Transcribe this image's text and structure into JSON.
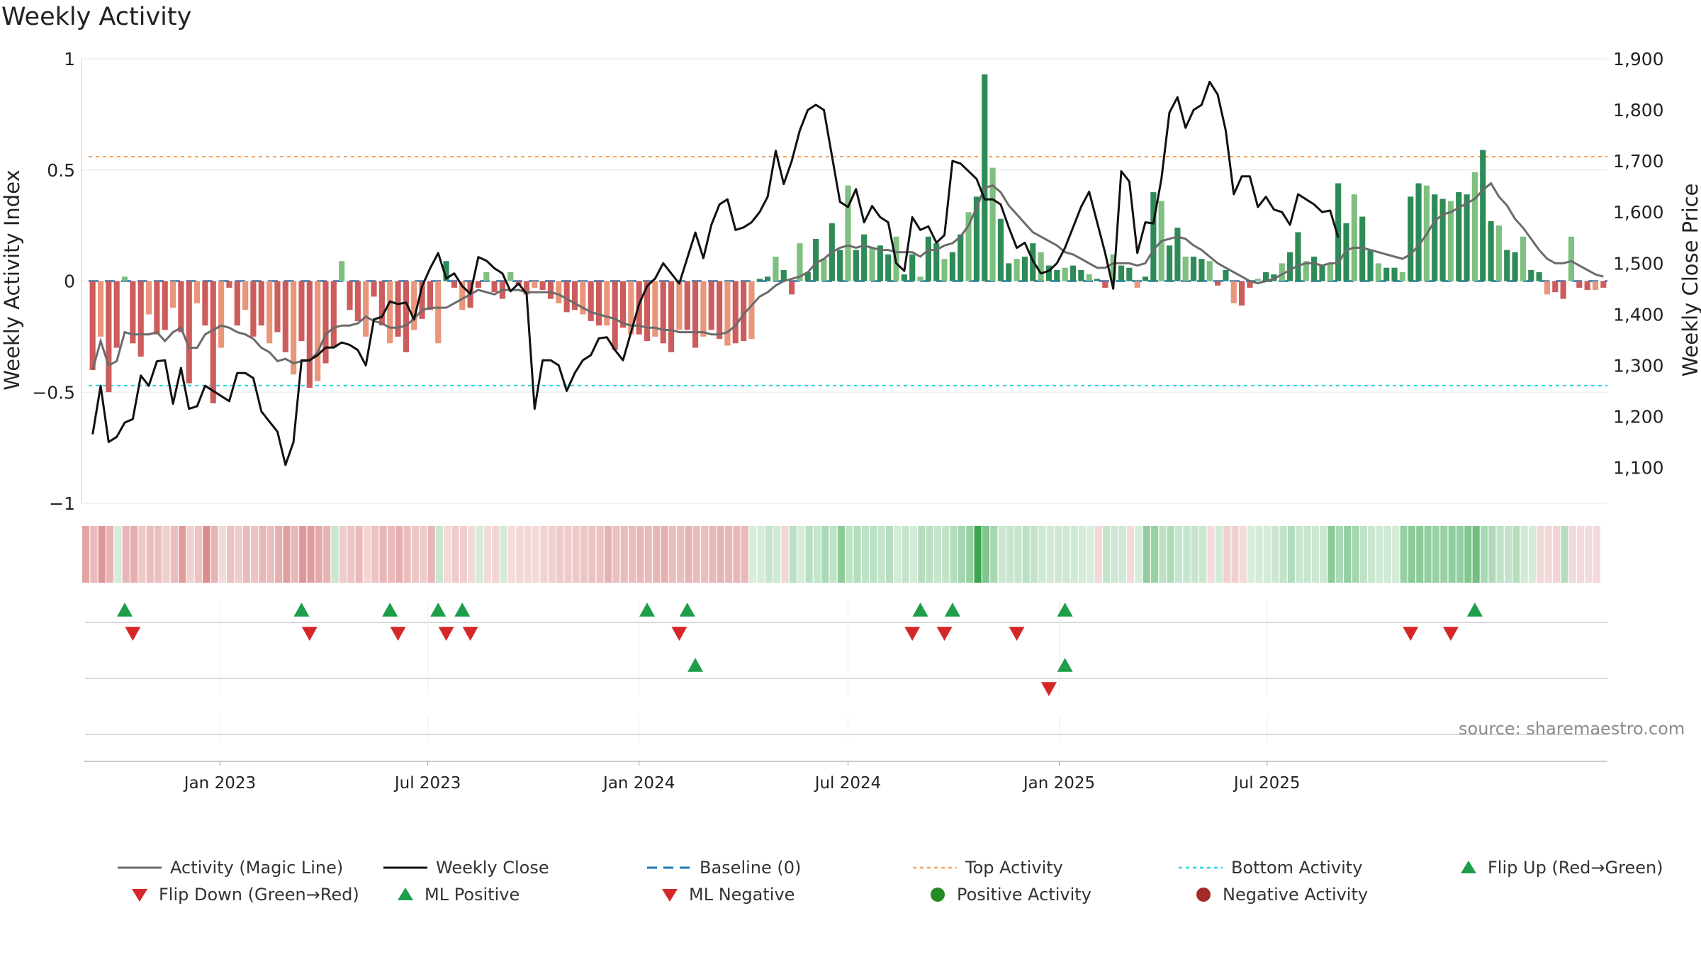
{
  "title": "Weekly Activity",
  "source": "source: sharemaestro.com",
  "colors": {
    "pos_dark": "#2e8b57",
    "pos_light": "#7fbf7f",
    "neg_dark": "#cd5c5c",
    "neg_light": "#e9967a",
    "magic": "#6b6b6b",
    "close": "#111111",
    "baseline": "#1f77b4",
    "top": "#f4a460",
    "bottom": "#1fd3e0",
    "flip_up": "#1e9e4a",
    "flip_down": "#d62728"
  },
  "chart_data": {
    "type": "bar",
    "title": "Weekly Activity",
    "ylabel": "Weekly Activity Index",
    "y2label": "Weekly Close Price",
    "ylim": [
      -1,
      1
    ],
    "y2lim": [
      1030,
      1900
    ],
    "yticks": [
      "1",
      "0.5",
      "0",
      "−0.5",
      "−1"
    ],
    "yticks_values": [
      1,
      0.5,
      0,
      -0.5,
      -1
    ],
    "y2ticks": [
      "1,900",
      "1,800",
      "1,700",
      "1,600",
      "1,500",
      "1,400",
      "1,300",
      "1,200",
      "1,100"
    ],
    "y2ticks_values": [
      1900,
      1800,
      1700,
      1600,
      1500,
      1400,
      1300,
      1200,
      1100
    ],
    "x_start": "2022-09-12",
    "x_step_days": 7,
    "xticks": [
      {
        "label": "Jan 2023",
        "date": "2023-01-01"
      },
      {
        "label": "Jul 2023",
        "date": "2023-07-01"
      },
      {
        "label": "Jan 2024",
        "date": "2024-01-01"
      },
      {
        "label": "Jul 2024",
        "date": "2024-07-01"
      },
      {
        "label": "Jan 2025",
        "date": "2025-01-01"
      },
      {
        "label": "Jul 2025",
        "date": "2025-07-01"
      }
    ],
    "top_activity": 0.56,
    "bottom_activity": -0.47,
    "baseline": 0,
    "series": [
      {
        "name": "Weekly Activity",
        "values": [
          -0.4,
          -0.25,
          -0.5,
          -0.3,
          0.02,
          -0.28,
          -0.34,
          -0.15,
          -0.24,
          -0.22,
          -0.12,
          -0.23,
          -0.46,
          -0.1,
          -0.2,
          -0.55,
          -0.3,
          -0.03,
          -0.2,
          -0.13,
          -0.25,
          -0.2,
          -0.28,
          -0.23,
          -0.32,
          -0.42,
          -0.27,
          -0.48,
          -0.45,
          -0.37,
          -0.3,
          0.09,
          -0.13,
          -0.18,
          -0.25,
          -0.07,
          -0.2,
          -0.28,
          -0.25,
          -0.32,
          -0.22,
          -0.17,
          -0.13,
          -0.28,
          0.09,
          -0.03,
          -0.13,
          -0.12,
          -0.03,
          0.04,
          -0.05,
          -0.08,
          0.04,
          -0.02,
          -0.06,
          -0.03,
          -0.04,
          -0.08,
          -0.1,
          -0.14,
          -0.13,
          -0.15,
          -0.18,
          -0.2,
          -0.2,
          -0.31,
          -0.21,
          -0.24,
          -0.24,
          -0.27,
          -0.25,
          -0.28,
          -0.32,
          -0.22,
          -0.22,
          -0.3,
          -0.25,
          -0.22,
          -0.26,
          -0.29,
          -0.28,
          -0.27,
          -0.26,
          0.01,
          0.02,
          0.11,
          0.05,
          -0.06,
          0.17,
          0.04,
          0.19,
          0.1,
          0.26,
          0.14,
          0.43,
          0.14,
          0.21,
          0.15,
          0.16,
          0.12,
          0.2,
          0.03,
          0.12,
          0.02,
          0.2,
          0.17,
          0.1,
          0.13,
          0.21,
          0.31,
          0.38,
          0.93,
          0.51,
          0.28,
          0.08,
          0.1,
          0.11,
          0.17,
          0.13,
          0.07,
          0.05,
          0.06,
          0.07,
          0.05,
          0.03,
          0.01,
          -0.03,
          0.12,
          0.07,
          0.06,
          -0.03,
          0.02,
          0.4,
          0.36,
          0.16,
          0.24,
          0.11,
          0.11,
          0.1,
          0.09,
          -0.02,
          0.05,
          -0.1,
          -0.11,
          -0.03,
          0.01,
          0.04,
          0.03,
          0.08,
          0.13,
          0.22,
          0.09,
          0.11,
          0.07,
          0.08,
          0.44,
          0.26,
          0.39,
          0.29,
          0.14,
          0.08,
          0.06,
          0.06,
          0.04,
          0.38,
          0.44,
          0.43,
          0.39,
          0.37,
          0.36,
          0.4,
          0.39,
          0.49,
          0.59,
          0.27,
          0.25,
          0.14,
          0.13,
          0.2,
          0.05,
          0.04,
          -0.06,
          -0.05,
          -0.08,
          0.2,
          -0.03,
          -0.04,
          -0.04,
          -0.03
        ]
      },
      {
        "name": "Activity (Magic Line)",
        "values": [
          -0.4,
          -0.27,
          -0.38,
          -0.36,
          -0.23,
          -0.24,
          -0.24,
          -0.24,
          -0.23,
          -0.27,
          -0.23,
          -0.21,
          -0.3,
          -0.3,
          -0.24,
          -0.22,
          -0.2,
          -0.21,
          -0.23,
          -0.24,
          -0.26,
          -0.3,
          -0.32,
          -0.36,
          -0.35,
          -0.37,
          -0.36,
          -0.36,
          -0.32,
          -0.24,
          -0.21,
          -0.2,
          -0.2,
          -0.19,
          -0.16,
          -0.18,
          -0.19,
          -0.21,
          -0.21,
          -0.2,
          -0.17,
          -0.13,
          -0.12,
          -0.12,
          -0.12,
          -0.1,
          -0.08,
          -0.06,
          -0.04,
          -0.05,
          -0.06,
          -0.04,
          -0.04,
          -0.04,
          -0.05,
          -0.05,
          -0.05,
          -0.05,
          -0.06,
          -0.08,
          -0.1,
          -0.12,
          -0.14,
          -0.15,
          -0.16,
          -0.17,
          -0.19,
          -0.2,
          -0.2,
          -0.21,
          -0.21,
          -0.22,
          -0.22,
          -0.23,
          -0.23,
          -0.23,
          -0.23,
          -0.24,
          -0.24,
          -0.23,
          -0.2,
          -0.15,
          -0.11,
          -0.07,
          -0.05,
          -0.02,
          0.0,
          0.01,
          0.02,
          0.04,
          0.08,
          0.1,
          0.13,
          0.15,
          0.16,
          0.15,
          0.16,
          0.15,
          0.14,
          0.14,
          0.13,
          0.13,
          0.13,
          0.11,
          0.14,
          0.14,
          0.16,
          0.17,
          0.2,
          0.25,
          0.33,
          0.42,
          0.43,
          0.4,
          0.34,
          0.3,
          0.26,
          0.22,
          0.2,
          0.18,
          0.16,
          0.13,
          0.12,
          0.1,
          0.08,
          0.06,
          0.06,
          0.08,
          0.08,
          0.08,
          0.07,
          0.08,
          0.14,
          0.18,
          0.19,
          0.2,
          0.19,
          0.16,
          0.14,
          0.11,
          0.08,
          0.06,
          0.04,
          0.02,
          0.0,
          -0.01,
          0.0,
          0.01,
          0.03,
          0.05,
          0.07,
          0.08,
          0.08,
          0.07,
          0.08,
          0.08,
          0.14,
          0.15,
          0.15,
          0.14,
          0.13,
          0.12,
          0.11,
          0.1,
          0.12,
          0.16,
          0.21,
          0.27,
          0.3,
          0.31,
          0.33,
          0.35,
          0.37,
          0.41,
          0.44,
          0.38,
          0.34,
          0.28,
          0.24,
          0.19,
          0.14,
          0.1,
          0.08,
          0.08,
          0.09,
          0.07,
          0.05,
          0.03,
          0.02
        ]
      },
      {
        "name": "Weekly Close",
        "values": [
          1165,
          1260,
          1150,
          1160,
          1188,
          1195,
          1280,
          1260,
          1308,
          1310,
          1225,
          1295,
          1215,
          1220,
          1260,
          1250,
          1240,
          1230,
          1285,
          1285,
          1275,
          1210,
          1190,
          1170,
          1105,
          1150,
          1310,
          1310,
          1320,
          1335,
          1335,
          1345,
          1340,
          1330,
          1300,
          1390,
          1395,
          1425,
          1420,
          1423,
          1390,
          1455,
          1490,
          1520,
          1470,
          1480,
          1455,
          1440,
          1512,
          1505,
          1490,
          1480,
          1445,
          1460,
          1440,
          1215,
          1310,
          1310,
          1300,
          1250,
          1285,
          1310,
          1320,
          1353,
          1355,
          1330,
          1310,
          1365,
          1420,
          1455,
          1470,
          1500,
          1480,
          1460,
          1510,
          1560,
          1510,
          1575,
          1615,
          1625,
          1565,
          1570,
          1580,
          1600,
          1630,
          1720,
          1655,
          1700,
          1760,
          1800,
          1810,
          1800,
          1710,
          1620,
          1610,
          1645,
          1580,
          1612,
          1590,
          1580,
          1500,
          1485,
          1590,
          1565,
          1572,
          1540,
          1555,
          1700,
          1695,
          1680,
          1665,
          1625,
          1625,
          1615,
          1570,
          1530,
          1540,
          1505,
          1480,
          1485,
          1500,
          1530,
          1570,
          1610,
          1640,
          1580,
          1520,
          1450,
          1680,
          1660,
          1520,
          1580,
          1578,
          1665,
          1795,
          1825,
          1765,
          1800,
          1810,
          1855,
          1830,
          1760,
          1635,
          1670,
          1670,
          1610,
          1630,
          1605,
          1600,
          1575,
          1635,
          1625,
          1615,
          1600,
          1603,
          1550
        ]
      },
      {
        "name": "Flip Up (Red→Green)",
        "indices": [
          4,
          26,
          37,
          43,
          46,
          69,
          74,
          103,
          107,
          121,
          172
        ]
      },
      {
        "name": "Flip Down (Green→Red)",
        "indices": [
          5,
          27,
          38,
          44,
          47,
          73,
          102,
          106,
          115,
          164,
          169
        ]
      },
      {
        "name": "ML Positive",
        "indices": [
          75,
          121
        ]
      },
      {
        "name": "ML Negative",
        "indices": [
          119
        ]
      }
    ]
  },
  "legend": [
    {
      "key": "magic",
      "label": "Activity (Magic Line)"
    },
    {
      "key": "close",
      "label": "Weekly Close"
    },
    {
      "key": "baseline",
      "label": "Baseline (0)"
    },
    {
      "key": "top",
      "label": "Top Activity"
    },
    {
      "key": "bottom",
      "label": "Bottom Activity"
    },
    {
      "key": "flip_up",
      "label": "Flip Up (Red→Green)"
    },
    {
      "key": "flip_down",
      "label": "Flip Down (Green→Red)"
    },
    {
      "key": "ml_pos",
      "label": "ML Positive"
    },
    {
      "key": "ml_neg",
      "label": "ML Negative"
    },
    {
      "key": "pos_act",
      "label": "Positive Activity"
    },
    {
      "key": "neg_act",
      "label": "Negative Activity"
    }
  ]
}
